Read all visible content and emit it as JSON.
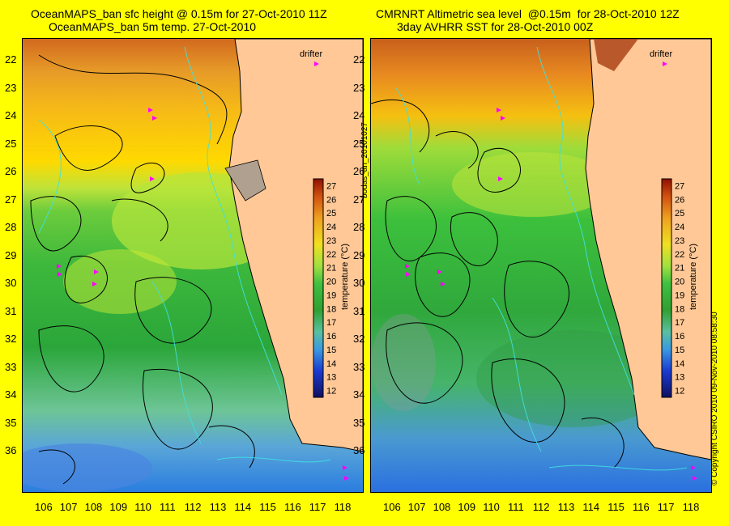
{
  "titles": {
    "left_line1": "OceanMAPS_ban sfc height @ 0.15m for 27-Oct-2010 11Z",
    "left_line2": "OceanMAPS_ban 5m temp. 27-Oct-2010",
    "right_line1": "CMRNRT Altimetric sea level  @0.15m  for 28-Oct-2010 12Z",
    "right_line2": "3day AVHRR SST for 28-Oct-2010 00Z"
  },
  "side_labels": {
    "bodas": "bodas_an_20101027",
    "copyright": "© Copyright CSIRO 2010   09-Nov-2010 08:58:30"
  },
  "drifter_label": "drifter",
  "colorbar": {
    "title": "temperature (°C)",
    "ticks": [
      "12",
      "13",
      "14",
      "15",
      "16",
      "17",
      "18",
      "19",
      "20",
      "21",
      "22",
      "23",
      "24",
      "25",
      "26",
      "27"
    ]
  },
  "axes": {
    "lat_labels": [
      "22",
      "23",
      "24",
      "25",
      "26",
      "27",
      "28",
      "29",
      "30",
      "31",
      "32",
      "33",
      "34",
      "35",
      "36"
    ],
    "lon_labels": [
      "106",
      "107",
      "108",
      "109",
      "110",
      "111",
      "112",
      "113",
      "114",
      "115",
      "116",
      "117",
      "118"
    ]
  },
  "colors": {
    "background": "#ffff00",
    "land": "#ffc896"
  }
}
